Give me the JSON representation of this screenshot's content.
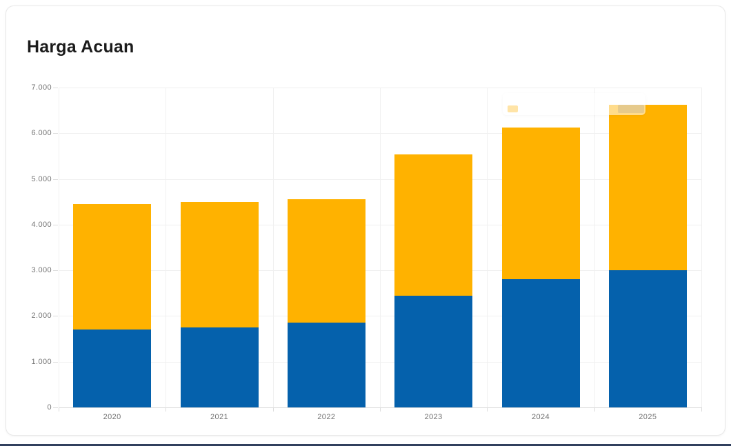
{
  "page": {
    "title": "Harga Acuan"
  },
  "chart_data": {
    "type": "bar",
    "variant": "stacked-vertical",
    "title": "Harga Acuan",
    "categories": [
      "2020",
      "2021",
      "2022",
      "2023",
      "2024",
      "2025"
    ],
    "series": [
      {
        "name": "series-1-blue",
        "color": "#0561ac",
        "values": [
          1700,
          1750,
          1850,
          2450,
          2800,
          3000
        ]
      },
      {
        "name": "series-2-orange",
        "color": "#ffb200",
        "values": [
          2750,
          2750,
          2700,
          3080,
          3320,
          3630
        ]
      }
    ],
    "stack_totals": [
      4450,
      4500,
      4550,
      5530,
      6120,
      6630
    ],
    "xlabel": "",
    "ylabel": "",
    "ylim": [
      0,
      7000
    ],
    "y_tick_step": 1000,
    "y_tick_labels": [
      "0",
      "1.000",
      "2.000",
      "3.000",
      "4.000",
      "5.000",
      "6.000",
      "7.000"
    ],
    "grid": true,
    "legend_position": "none"
  },
  "colors": {
    "bar_blue": "#0561ac",
    "bar_orange": "#ffb200",
    "grid_line": "#f0f0f0",
    "axis_line": "#dcdcdc",
    "axis_text": "#737373",
    "title_text": "#1b1b1b",
    "card_border": "#e8e8e8",
    "card_bg": "#ffffff",
    "footer_strip": "#31405e"
  }
}
